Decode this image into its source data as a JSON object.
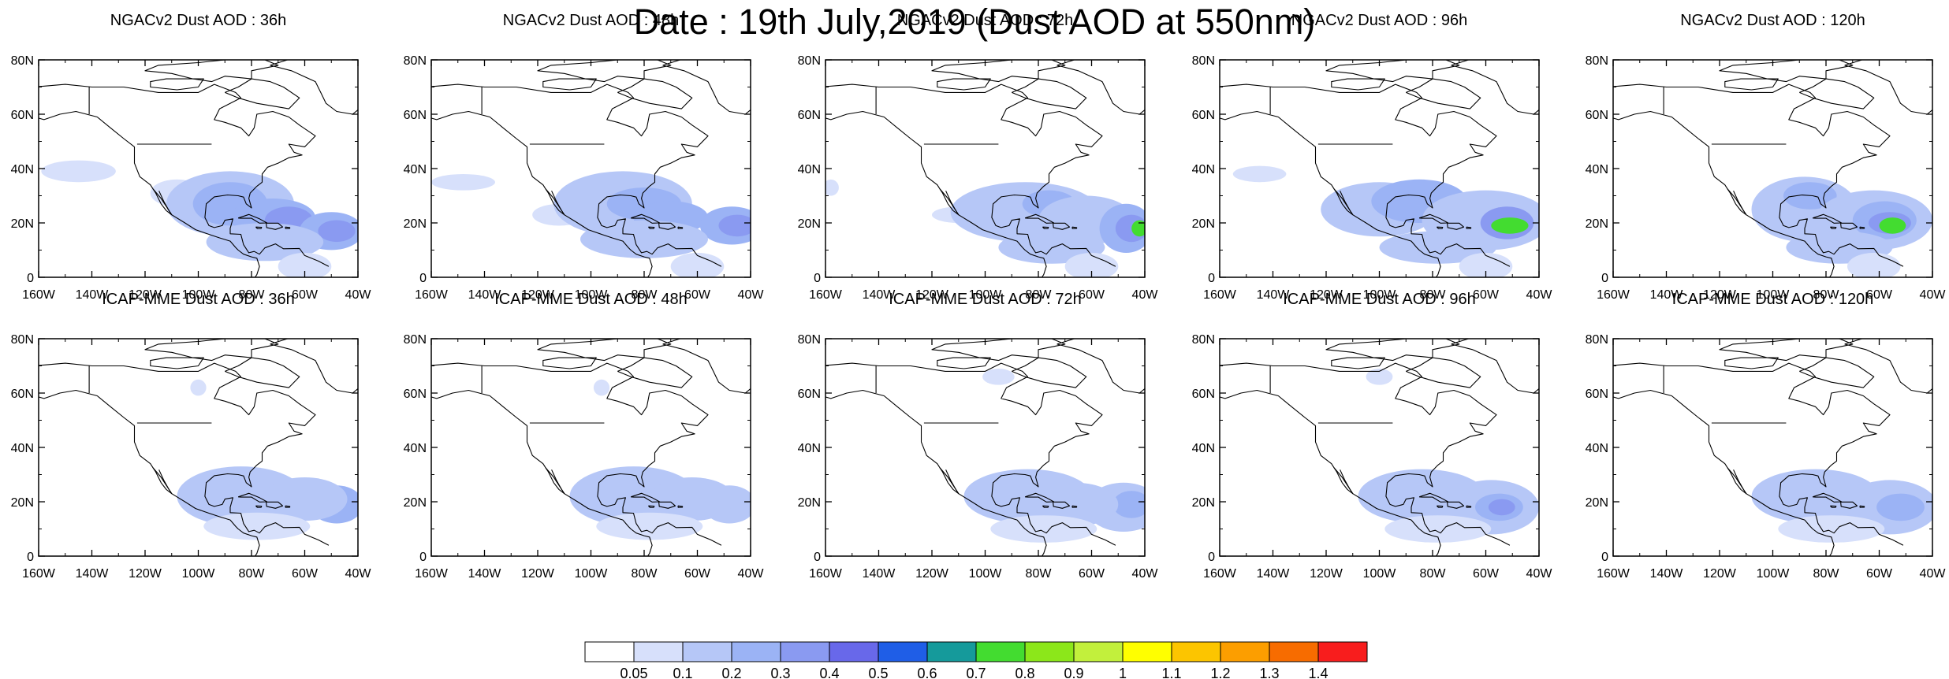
{
  "title": "Date : 19th July,2019 (Dust AOD at 550nm)",
  "lat_tick_labels": [
    "80N",
    "60N",
    "40N",
    "20N",
    "0"
  ],
  "lon_tick_labels": [
    "160W",
    "140W",
    "120W",
    "100W",
    "80W",
    "60W",
    "40W"
  ],
  "panels": [
    {
      "title": "NGACv2 Dust AOD : 36h"
    },
    {
      "title": "NGACv2 Dust AOD : 48h"
    },
    {
      "title": "NGACv2 Dust AOD : 72h"
    },
    {
      "title": "NGACv2 Dust AOD : 96h"
    },
    {
      "title": "NGACv2 Dust AOD : 120h"
    },
    {
      "title": "ICAP-MME Dust AOD : 36h"
    },
    {
      "title": "ICAP-MME Dust AOD : 48h"
    },
    {
      "title": "ICAP-MME Dust AOD : 72h"
    },
    {
      "title": "ICAP-MME Dust AOD : 96h"
    },
    {
      "title": "ICAP-MME Dust AOD : 120h"
    }
  ],
  "colorbar": {
    "labels": [
      "0.05",
      "0.1",
      "0.2",
      "0.3",
      "0.4",
      "0.5",
      "0.6",
      "0.7",
      "0.8",
      "0.9",
      "1",
      "1.1",
      "1.2",
      "1.3",
      "1.4"
    ],
    "colors": [
      "#ffffff",
      "#d7e0fb",
      "#b6c7f7",
      "#9bb3f5",
      "#8a9af1",
      "#6868ea",
      "#1f5ee7",
      "#159a9b",
      "#43dc30",
      "#8ce71a",
      "#c2f03c",
      "#ffff00",
      "#fcc500",
      "#fc9e00",
      "#f76c00",
      "#f81d1d"
    ]
  },
  "map_extent": {
    "lon": [
      -160,
      -40
    ],
    "lat": [
      0,
      80
    ]
  }
}
